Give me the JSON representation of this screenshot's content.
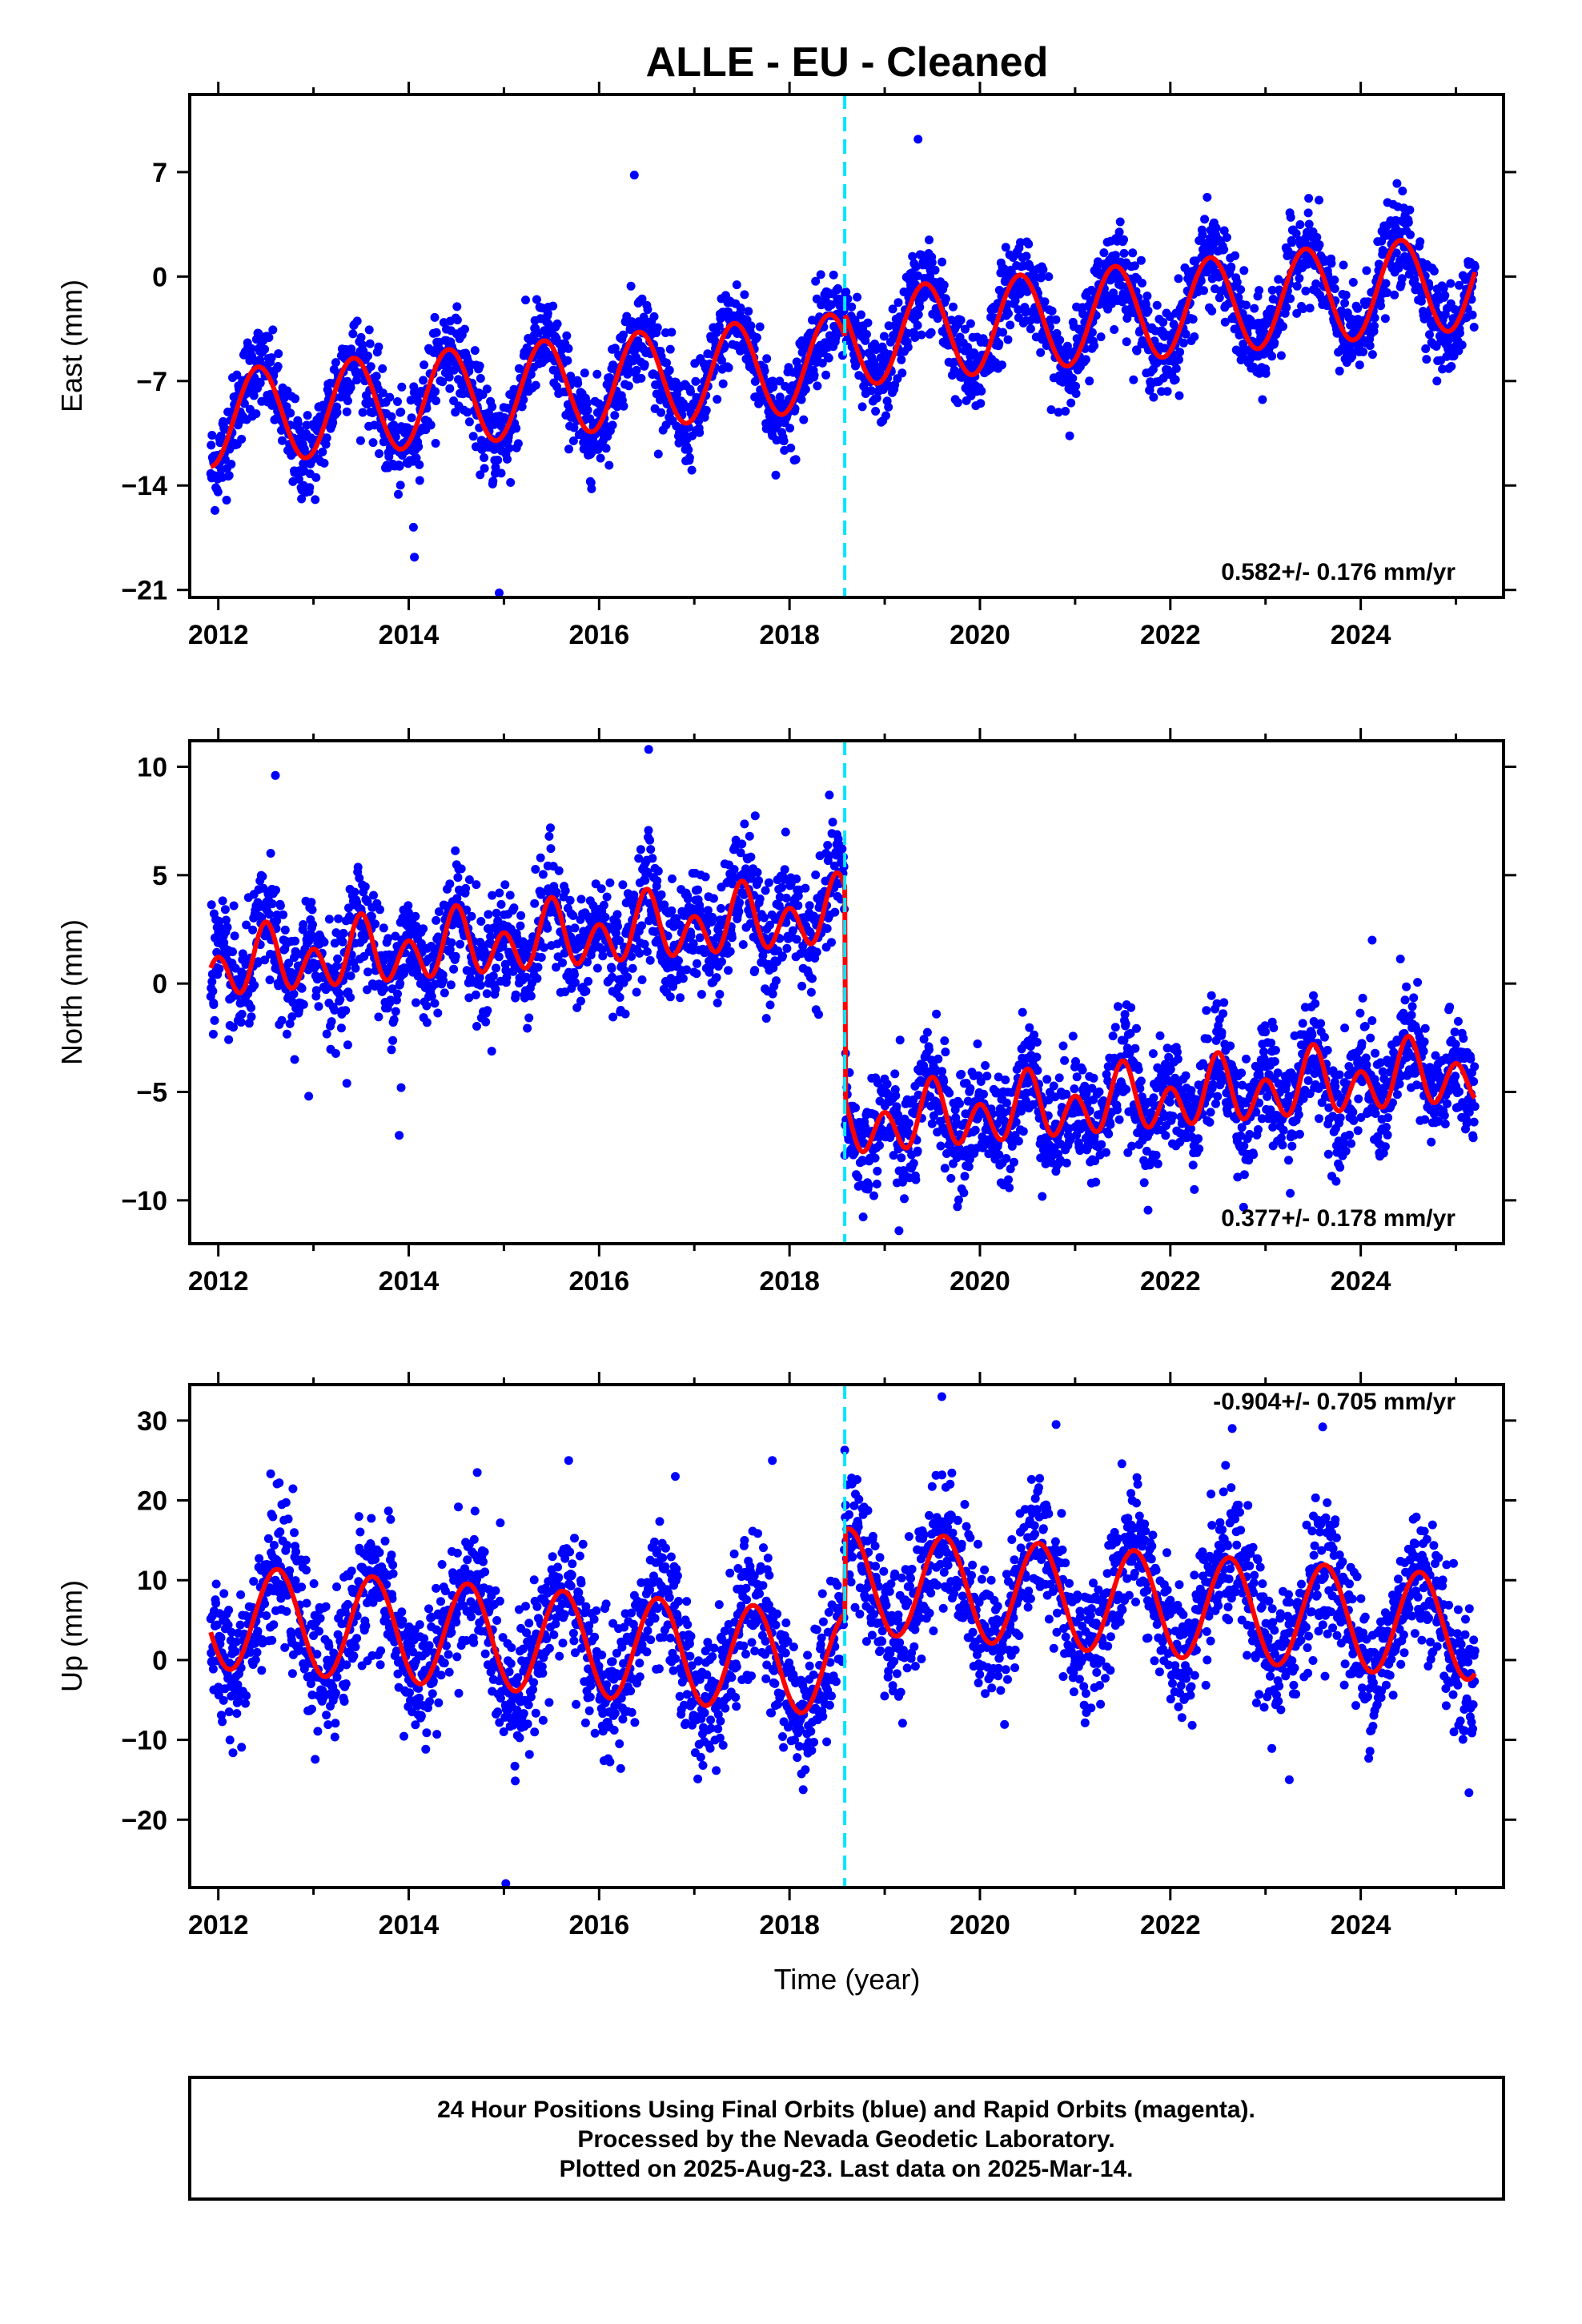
{
  "title": "ALLE  - EU - Cleaned",
  "xlabel": "Time (year)",
  "footer": {
    "line1": "24 Hour Positions Using Final Orbits (blue) and Rapid Orbits (magenta).",
    "line2": "Processed by the Nevada Geodetic Laboratory.",
    "line3": "Plotted on 2025-Aug-23. Last data on 2025-Mar-14."
  },
  "colors": {
    "points": "#0000ff",
    "fit": "#ff0000",
    "event_line": "#00e5ff",
    "frame": "#000000"
  },
  "chart_data": [
    {
      "type": "scatter",
      "name": "east",
      "ylabel": "East (mm)",
      "rate": "0.582+/- 0.176 mm/yr",
      "xlim": [
        2011.7,
        2025.5
      ],
      "ylim": [
        -21.5,
        12.2
      ],
      "xticks": [
        2012,
        2014,
        2016,
        2018,
        2020,
        2022,
        2024
      ],
      "yticks": [
        7,
        0,
        -7,
        -14,
        -21
      ],
      "event_x": 2018.58,
      "data_start": 2011.92,
      "data_end": 2025.2,
      "fit": {
        "offset": -6.0,
        "slope": 0.582,
        "amp": 3.2,
        "phase": 2012.42,
        "step_at": 2018.58,
        "step": 1.5,
        "period": 1.0
      },
      "scatter_sigma": 1.5,
      "outliers": [
        [
          2011.93,
          -13.5
        ],
        [
          2014.05,
          -16.8
        ],
        [
          2014.06,
          -18.8
        ],
        [
          2014.95,
          -21.2
        ],
        [
          2015.07,
          -13.8
        ],
        [
          2018.05,
          -12.3
        ],
        [
          2024.8,
          -7.0
        ],
        [
          2016.37,
          6.8
        ],
        [
          2019.35,
          9.2
        ]
      ]
    },
    {
      "type": "scatter",
      "name": "north",
      "ylabel": "North (mm)",
      "rate": "0.377+/- 0.178 mm/yr",
      "xlim": [
        2011.7,
        2025.5
      ],
      "ylim": [
        -12,
        11.2
      ],
      "xticks": [
        2012,
        2014,
        2016,
        2018,
        2020,
        2022,
        2024
      ],
      "yticks": [
        10,
        5,
        0,
        -5,
        -10
      ],
      "event_x": 2018.58,
      "data_start": 2011.92,
      "data_end": 2025.2,
      "fit": {
        "offset": 3.0,
        "slope": 0.377,
        "amp": 1.2,
        "phase": 2012.5,
        "step_at": 2018.58,
        "step": -9.8,
        "period": 0.5
      },
      "scatter_sigma": 1.3,
      "outliers": [
        [
          2012.95,
          -5.2
        ],
        [
          2013.35,
          -4.6
        ],
        [
          2013.9,
          -7.0
        ],
        [
          2013.92,
          -4.8
        ],
        [
          2016.52,
          10.8
        ],
        [
          2019.15,
          -11.4
        ],
        [
          2011.95,
          -0.9
        ],
        [
          2012.6,
          9.6
        ],
        [
          2024.12,
          2.0
        ]
      ]
    },
    {
      "type": "scatter",
      "name": "up",
      "ylabel": "Up (mm)",
      "rate": "-0.904+/- 0.705 mm/yr",
      "xlim": [
        2011.7,
        2025.5
      ],
      "ylim": [
        -28.5,
        34.5
      ],
      "xticks": [
        2012,
        2014,
        2016,
        2018,
        2020,
        2022,
        2024
      ],
      "yticks": [
        30,
        20,
        10,
        0,
        -10,
        -20
      ],
      "event_x": 2018.58,
      "data_start": 2011.92,
      "data_end": 2025.2,
      "fit": {
        "offset": 0.0,
        "slope": -0.904,
        "amp": 6.5,
        "phase": 2012.62,
        "step_at": 2018.58,
        "step": 10.5,
        "period": 1.0
      },
      "scatter_sigma": 4.2,
      "outliers": [
        [
          2015.02,
          -28.0
        ],
        [
          2019.6,
          33.0
        ],
        [
          2020.8,
          29.5
        ],
        [
          2022.65,
          29.0
        ],
        [
          2023.6,
          29.2
        ],
        [
          2014.72,
          23.5
        ],
        [
          2015.68,
          25.0
        ],
        [
          2017.82,
          25.0
        ],
        [
          2016.8,
          23.0
        ],
        [
          2023.25,
          -15.0
        ]
      ]
    }
  ]
}
